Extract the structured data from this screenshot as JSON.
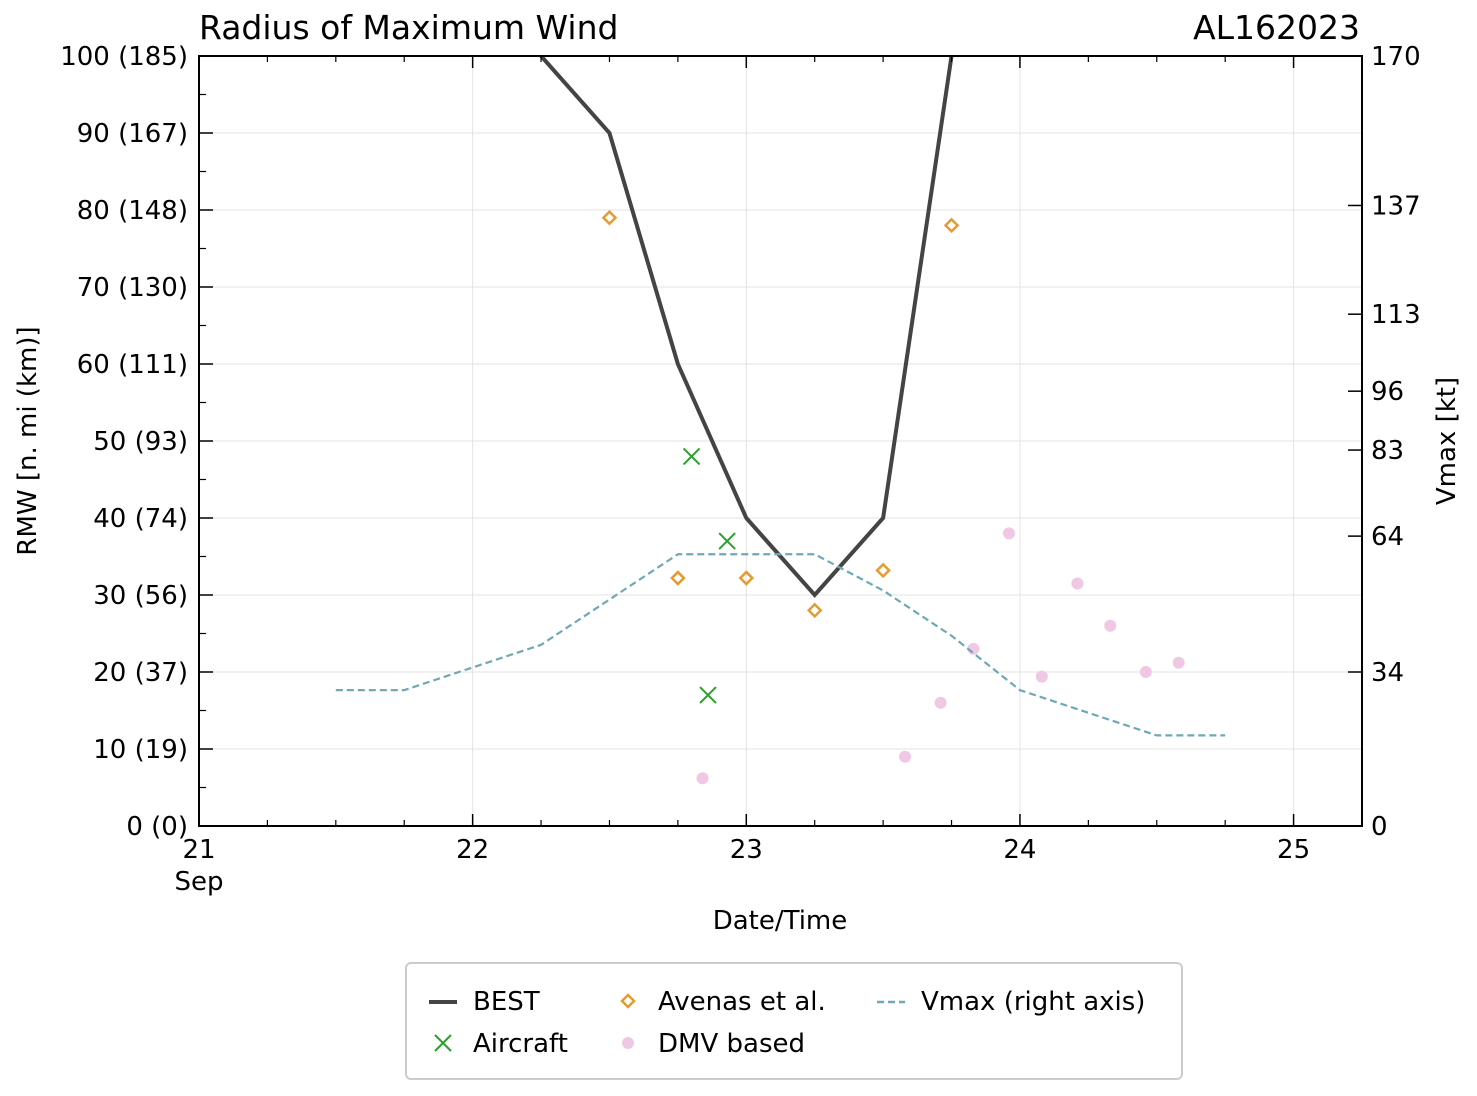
{
  "chart_data": {
    "type": "line",
    "title": "Radius of Maximum Wind",
    "storm_id": "AL162023",
    "xlabel": "Date/Time",
    "ylabel": "RMW [n. mi (km)]",
    "y2label": "Vmax [kt]",
    "xlim": [
      21,
      25.25
    ],
    "ylim": [
      0,
      100
    ],
    "y2lim": [
      0,
      170
    ],
    "x_ticks": [
      {
        "value": 21,
        "label": "21",
        "sublabel": "Sep"
      },
      {
        "value": 22,
        "label": "22",
        "sublabel": ""
      },
      {
        "value": 23,
        "label": "23",
        "sublabel": ""
      },
      {
        "value": 24,
        "label": "24",
        "sublabel": ""
      },
      {
        "value": 25,
        "label": "25",
        "sublabel": ""
      }
    ],
    "y_ticks": [
      {
        "value": 0,
        "label": "0 (0)"
      },
      {
        "value": 10,
        "label": "10 (19)"
      },
      {
        "value": 20,
        "label": "20 (37)"
      },
      {
        "value": 30,
        "label": "30 (56)"
      },
      {
        "value": 40,
        "label": "40 (74)"
      },
      {
        "value": 50,
        "label": "50 (93)"
      },
      {
        "value": 60,
        "label": "60 (111)"
      },
      {
        "value": 70,
        "label": "70 (130)"
      },
      {
        "value": 80,
        "label": "80 (148)"
      },
      {
        "value": 90,
        "label": "90 (167)"
      },
      {
        "value": 100,
        "label": "100 (185)"
      }
    ],
    "y2_ticks": [
      {
        "value": 0,
        "label": "0"
      },
      {
        "value": 34,
        "label": "34"
      },
      {
        "value": 64,
        "label": "64"
      },
      {
        "value": 83,
        "label": "83"
      },
      {
        "value": 96,
        "label": "96"
      },
      {
        "value": 113,
        "label": "113"
      },
      {
        "value": 137,
        "label": "137"
      },
      {
        "value": 170,
        "label": "170"
      }
    ],
    "series": [
      {
        "name": "BEST",
        "kind": "line",
        "axis": "left",
        "color": "#444444",
        "x": [
          22.25,
          22.5,
          22.75,
          23.0,
          23.25,
          23.5,
          23.75
        ],
        "y": [
          100,
          90,
          60,
          40,
          30,
          40,
          100
        ]
      },
      {
        "name": "Aircraft",
        "kind": "x-marker",
        "axis": "left",
        "color": "#2ca02c",
        "x": [
          22.8,
          22.93,
          22.86
        ],
        "y": [
          48,
          37,
          17
        ]
      },
      {
        "name": "Avenas et al.",
        "kind": "diamond",
        "axis": "left",
        "color": "#e69b2e",
        "x": [
          22.5,
          22.75,
          23.0,
          23.25,
          23.5,
          23.75
        ],
        "y": [
          79,
          32.2,
          32.2,
          28,
          33.2,
          78
        ]
      },
      {
        "name": "DMV based",
        "kind": "dot",
        "axis": "left",
        "color": "#f0c8e4",
        "x": [
          22.84,
          23.58,
          23.71,
          23.83,
          23.96,
          24.08,
          24.21,
          24.33,
          24.46,
          24.58
        ],
        "y": [
          6.2,
          9,
          16,
          23,
          38,
          19.4,
          31.5,
          26,
          20,
          21.2
        ]
      },
      {
        "name": "Vmax (right axis)",
        "kind": "dashed-line",
        "axis": "right",
        "color": "#6fa8b6",
        "x": [
          21.5,
          21.75,
          22.0,
          22.25,
          22.5,
          22.75,
          23.0,
          23.25,
          23.5,
          23.75,
          24.0,
          24.25,
          24.5,
          24.75
        ],
        "y": [
          30,
          30,
          35,
          40,
          50,
          60,
          60,
          60,
          52,
          42,
          30,
          25,
          20,
          20
        ]
      }
    ],
    "legend": {
      "location": "below plot",
      "entries": [
        "BEST",
        "Aircraft",
        "Avenas et al.",
        "DMV based",
        "Vmax (right axis)"
      ]
    },
    "grid": true
  }
}
